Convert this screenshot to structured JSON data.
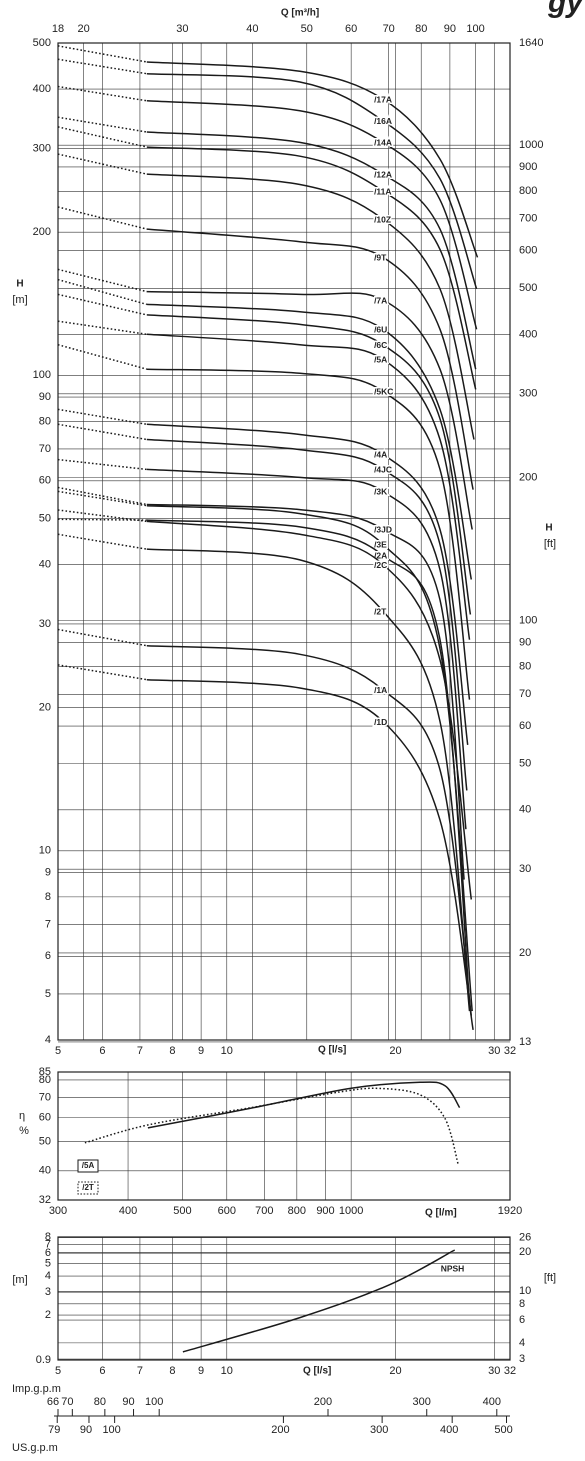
{
  "logo_text": "gy",
  "chart_data": [
    {
      "type": "line",
      "x_label": "Q [l/s]",
      "x2_label": "Q [m³/h]",
      "y_label": "H",
      "y_unit": "[m]",
      "y2_label": "H",
      "y2_unit": "[ft]",
      "xscale": "log",
      "yscale": "log",
      "grid": true,
      "color": "#1a1a1a",
      "xlim": [
        5,
        32
      ],
      "xticks": [
        5,
        6,
        7,
        8,
        9,
        10,
        20,
        30,
        32
      ],
      "x2lim": [
        18,
        115.2
      ],
      "x2ticks": [
        18,
        20,
        30,
        40,
        50,
        60,
        70,
        80,
        90,
        100
      ],
      "ylim": [
        4,
        500
      ],
      "yticks": [
        4,
        5,
        6,
        7,
        8,
        9,
        10,
        20,
        30,
        40,
        50,
        60,
        70,
        80,
        90,
        100,
        200,
        300,
        400,
        500
      ],
      "y2lim": [
        13.12,
        1640.4
      ],
      "y2ticks": [
        13,
        20,
        30,
        40,
        50,
        60,
        70,
        80,
        90,
        100,
        200,
        300,
        400,
        500,
        600,
        700,
        800,
        900,
        1000,
        1640
      ],
      "series": [
        {
          "name": "/17A",
          "lead_x": [
            5,
            7.2
          ],
          "lead_values": [
            493,
            456
          ],
          "x": [
            7.2,
            13.5,
            19,
            24,
            28.0
          ],
          "values": [
            456,
            436,
            381,
            285,
            177
          ]
        },
        {
          "name": "/16A",
          "lead_x": [
            5,
            7.2
          ],
          "lead_values": [
            462,
            431
          ],
          "x": [
            7.2,
            13.5,
            19,
            24,
            27.9
          ],
          "values": [
            431,
            414,
            343,
            259,
            152
          ]
        },
        {
          "name": "/14A",
          "lead_x": [
            5,
            7.2
          ],
          "lead_values": [
            405,
            378
          ],
          "x": [
            7.2,
            13.5,
            19,
            24,
            27.9
          ],
          "values": [
            378,
            360,
            309,
            234,
            125
          ]
        },
        {
          "name": "/12A",
          "lead_x": [
            5,
            7.2
          ],
          "lead_values": [
            349,
            325
          ],
          "x": [
            7.2,
            13.5,
            19,
            24,
            27.8
          ],
          "values": [
            325,
            309,
            265,
            203,
            103
          ]
        },
        {
          "name": "/11A",
          "lead_x": [
            5,
            7.2
          ],
          "lead_values": [
            333,
            302
          ],
          "x": [
            7.2,
            13.5,
            19,
            24,
            27.8
          ],
          "values": [
            302,
            289,
            244,
            184,
            93.4
          ]
        },
        {
          "name": "/10Z",
          "lead_x": [
            5,
            7.2
          ],
          "lead_values": [
            292,
            265
          ],
          "x": [
            7.2,
            13.5,
            19,
            24,
            27.6
          ],
          "values": [
            265,
            252,
            213,
            152,
            73.3
          ]
        },
        {
          "name": "/9T",
          "lead_x": [
            5,
            7.2
          ],
          "lead_values": [
            226,
            203
          ],
          "x": [
            7.2,
            13.5,
            19,
            24,
            27.5
          ],
          "values": [
            203,
            191,
            177,
            125,
            57.5
          ]
        },
        {
          "name": "/7A",
          "lead_x": [
            5,
            7.2
          ],
          "lead_values": [
            167,
            150
          ],
          "x": [
            7.2,
            13.5,
            19,
            24,
            27.4
          ],
          "values": [
            150,
            148,
            144,
            103,
            47.4
          ]
        },
        {
          "name": "/6U",
          "lead_x": [
            5,
            7.2
          ],
          "lead_values": [
            159,
            141
          ],
          "x": [
            7.2,
            13.5,
            19,
            24,
            27.3
          ],
          "values": [
            141,
            136,
            125,
            84.8,
            37.2
          ]
        },
        {
          "name": "/6C",
          "lead_x": [
            5,
            7.2
          ],
          "lead_values": [
            148,
            134
          ],
          "x": [
            7.2,
            13.5,
            19,
            24,
            27.2
          ],
          "values": [
            134,
            128,
            116,
            81,
            31.4
          ]
        },
        {
          "name": "/5A",
          "lead_x": [
            5,
            7.2
          ],
          "lead_values": [
            130,
            122
          ],
          "x": [
            7.2,
            13.5,
            19,
            24,
            27.1
          ],
          "values": [
            122,
            116,
            108,
            73.3,
            27.8
          ]
        },
        {
          "name": "/5KC",
          "lead_x": [
            5,
            7.2
          ],
          "lead_values": [
            116,
            103
          ],
          "x": [
            7.2,
            13.5,
            19,
            24,
            27.1
          ],
          "values": [
            103,
            101,
            92.5,
            63.4,
            20.8
          ]
        },
        {
          "name": "/4A",
          "lead_x": [
            5,
            7.2
          ],
          "lead_values": [
            84.8,
            78.9
          ],
          "x": [
            7.2,
            13.5,
            19,
            24,
            26.9
          ],
          "values": [
            78.9,
            75.1,
            68.2,
            47.4,
            16.7
          ]
        },
        {
          "name": "/4JC",
          "lead_x": [
            5,
            7.2
          ],
          "lead_values": [
            78.9,
            73.3
          ],
          "x": [
            7.2,
            13.5,
            19,
            24,
            26.8
          ],
          "values": [
            73.3,
            69.8,
            63.4,
            44.1,
            13.4
          ]
        },
        {
          "name": "/3K",
          "lead_x": [
            5,
            7.2
          ],
          "lead_values": [
            66.5,
            63.4
          ],
          "x": [
            7.2,
            13.5,
            19,
            24,
            26.7
          ],
          "values": [
            63.4,
            61,
            57,
            39,
            11.1
          ]
        },
        {
          "name": "/3JD",
          "lead_x": [
            5,
            7.2
          ],
          "lead_values": [
            58.1,
            53.5
          ],
          "x": [
            7.2,
            13.5,
            19,
            24,
            26.5
          ],
          "values": [
            53.5,
            52.2,
            47.4,
            33.7,
            8.7
          ]
        },
        {
          "name": "/3E",
          "lead_x": [
            5,
            7.2
          ],
          "lead_values": [
            57,
            53.2
          ],
          "x": [
            7.2,
            13.5,
            19,
            24,
            27.4
          ],
          "values": [
            53.2,
            51.2,
            44.1,
            26.6,
            4.6
          ]
        },
        {
          "name": "/2A",
          "lead_x": [
            5,
            7.2
          ],
          "lead_values": [
            49.8,
            49.6
          ],
          "x": [
            7.2,
            13.5,
            19,
            24,
            27.1
          ],
          "values": [
            49.6,
            48,
            41.8,
            27.8,
            4.8
          ]
        },
        {
          "name": "/2C",
          "lead_x": [
            5,
            7.2
          ],
          "lead_values": [
            52.1,
            49.3
          ],
          "x": [
            7.2,
            13.5,
            19,
            24,
            27.3
          ],
          "values": [
            49.3,
            46.3,
            40,
            25.2,
            7.9
          ]
        },
        {
          "name": "/2T",
          "lead_x": [
            5,
            7.2
          ],
          "lead_values": [
            46.3,
            43.1
          ],
          "x": [
            7.2,
            13.5,
            19,
            24,
            27.1
          ],
          "values": [
            43.1,
            40.9,
            31.9,
            18.7,
            4.6
          ]
        },
        {
          "name": "/1A",
          "lead_x": [
            5,
            7.2
          ],
          "lead_values": [
            29.2,
            27
          ],
          "x": [
            7.2,
            13.5,
            19,
            24,
            27.3
          ],
          "values": [
            27,
            25.9,
            21.8,
            14.8,
            4.5
          ]
        },
        {
          "name": "/1D",
          "lead_x": [
            5,
            7.2
          ],
          "lead_values": [
            24.6,
            22.9
          ],
          "x": [
            7.2,
            13.5,
            19,
            24,
            27.5
          ],
          "values": [
            22.9,
            22,
            18.7,
            11.6,
            4.2
          ]
        }
      ]
    },
    {
      "type": "line",
      "x_label": "Q [l/m]",
      "y_label": "η",
      "y_unit": "%",
      "xscale": "log",
      "yscale": "log",
      "grid": true,
      "color": "#1a1a1a",
      "xlim": [
        300,
        1920
      ],
      "xticks": [
        300,
        400,
        500,
        600,
        700,
        800,
        900,
        1000,
        1920
      ],
      "ylim": [
        32,
        85
      ],
      "yticks": [
        32,
        40,
        50,
        60,
        70,
        80,
        85
      ],
      "series": [
        {
          "name": "/5A",
          "style": "solid",
          "x": [
            434,
            660,
            1000,
            1327,
            1470,
            1561
          ],
          "values": [
            55.5,
            64.4,
            75.1,
            78.6,
            76.5,
            64.8
          ]
        },
        {
          "name": "/2T",
          "style": "dotted",
          "x": [
            335,
            437,
            660,
            955,
            1120,
            1327,
            1470,
            1551
          ],
          "values": [
            49.5,
            56.9,
            64.7,
            73,
            75,
            71.4,
            59.6,
            42.2
          ]
        }
      ]
    },
    {
      "type": "line",
      "x_label": "Q [l/s]",
      "y_unit": "[m]",
      "y2_unit": "[ft]",
      "xscale": "log",
      "yscale": "log",
      "grid": true,
      "color": "#1a1a1a",
      "xlim": [
        5,
        32
      ],
      "xticks": [
        5,
        6,
        7,
        8,
        9,
        10,
        20,
        30,
        32
      ],
      "ylim": [
        0.9,
        8
      ],
      "yticks": [
        0.9,
        2,
        3,
        4,
        5,
        6,
        7,
        8
      ],
      "y2lim": [
        2.95,
        26.25
      ],
      "y2ticks": [
        3,
        4,
        6,
        8,
        10,
        20,
        26
      ],
      "series": [
        {
          "name": "NPSH",
          "style": "solid",
          "x": [
            8.35,
            13.5,
            19.5,
            25.5
          ],
          "values": [
            1.04,
            1.91,
            3.42,
            6.35
          ]
        }
      ]
    },
    {
      "type": "scale",
      "scales": [
        {
          "label": "Imp.g.p.m",
          "lim": [
            66,
            422.3
          ],
          "ticks": [
            66,
            70,
            80,
            90,
            100,
            200,
            300,
            400
          ]
        },
        {
          "label": "US.g.p.m",
          "lim": [
            79.25,
            507.2
          ],
          "ticks": [
            79,
            90,
            100,
            200,
            300,
            400,
            500
          ]
        }
      ]
    }
  ]
}
